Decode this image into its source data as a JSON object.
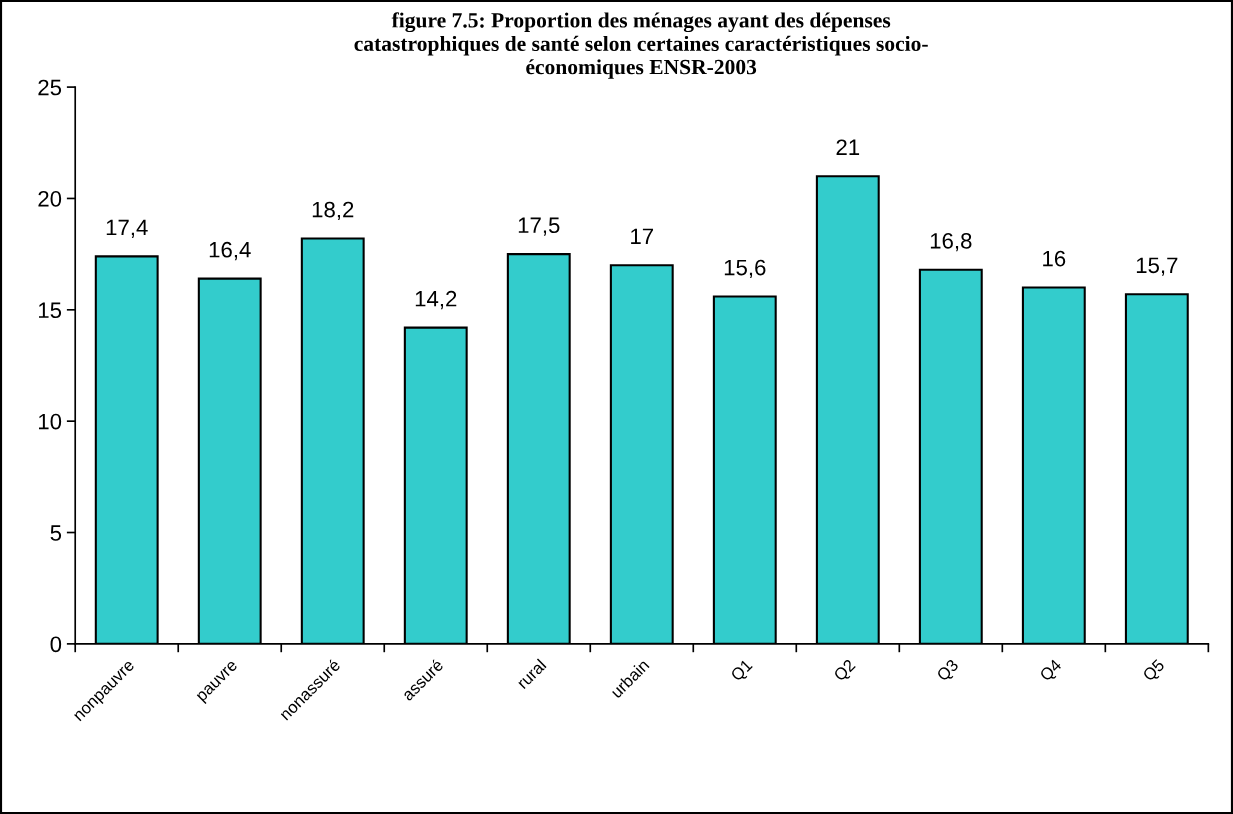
{
  "chart_data": {
    "type": "bar",
    "title": "figure 7.5: Proportion des ménages ayant des dépenses\ncatastrophiques de santé selon certaines caractéristiques socio-\néconomiques ENSR-2003",
    "categories": [
      "nonpauvre",
      "pauvre",
      "nonassuré",
      "assuré",
      "rural",
      "urbain",
      "Q1",
      "Q2",
      "Q3",
      "Q4",
      "Q5"
    ],
    "values": [
      17.4,
      16.4,
      18.2,
      14.2,
      17.5,
      17,
      15.6,
      21,
      16.8,
      16,
      15.7
    ],
    "value_labels": [
      "17,4",
      "16,4",
      "18,2",
      "14,2",
      "17,5",
      "17",
      "15,6",
      "21",
      "16,8",
      "16",
      "15,7"
    ],
    "color": "#33cccc",
    "ylim": [
      0,
      25
    ],
    "yticks": [
      0,
      5,
      10,
      15,
      20,
      25
    ],
    "grid": false,
    "legend": false
  }
}
